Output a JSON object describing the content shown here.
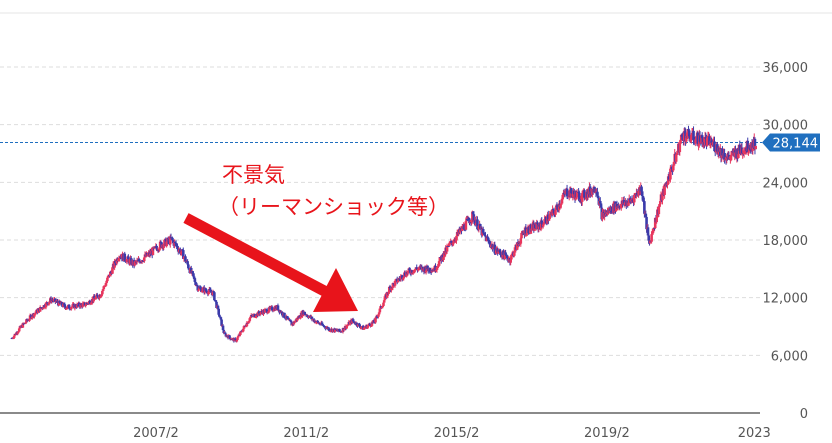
{
  "chart_data": {
    "type": "candlestick",
    "y_ticks": [
      0,
      6000,
      12000,
      18000,
      24000,
      30000,
      36000
    ],
    "y_tick_labels": [
      "0",
      "6,000",
      "12,000",
      "18,000",
      "24,000",
      "30,000",
      "36,000"
    ],
    "ylim": [
      0,
      36000
    ],
    "x_tick_labels": [
      "2007/2",
      "2011/2",
      "2015/2",
      "2019/2",
      "2023"
    ],
    "x_tick_years": [
      2007.08,
      2011.08,
      2015.08,
      2019.08,
      2023.0
    ],
    "xlim": [
      2003.25,
      2023.1
    ],
    "grid": true,
    "current_price": {
      "value": 28144,
      "label": "28,144"
    },
    "colors": {
      "up": "#e8365d",
      "down": "#3b3baa",
      "grid": "#dddddd",
      "price_line": "#1f6fbf",
      "annotation": "#e8141b"
    },
    "close_trajectory": [
      [
        2003.25,
        7800
      ],
      [
        2003.5,
        9000
      ],
      [
        2003.8,
        10200
      ],
      [
        2004.3,
        11800
      ],
      [
        2004.7,
        11000
      ],
      [
        2005.2,
        11300
      ],
      [
        2005.6,
        12300
      ],
      [
        2006.1,
        16500
      ],
      [
        2006.5,
        15500
      ],
      [
        2006.9,
        16500
      ],
      [
        2007.2,
        17500
      ],
      [
        2007.5,
        18000
      ],
      [
        2007.8,
        16500
      ],
      [
        2008.2,
        13000
      ],
      [
        2008.6,
        12500
      ],
      [
        2008.9,
        8200
      ],
      [
        2009.2,
        7500
      ],
      [
        2009.6,
        10000
      ],
      [
        2009.9,
        10500
      ],
      [
        2010.3,
        11000
      ],
      [
        2010.7,
        9200
      ],
      [
        2011.0,
        10500
      ],
      [
        2011.3,
        9600
      ],
      [
        2011.7,
        8700
      ],
      [
        2012.0,
        8500
      ],
      [
        2012.3,
        9600
      ],
      [
        2012.6,
        8800
      ],
      [
        2012.9,
        9500
      ],
      [
        2013.3,
        13000
      ],
      [
        2013.7,
        14500
      ],
      [
        2014.0,
        15000
      ],
      [
        2014.5,
        15000
      ],
      [
        2014.9,
        17500
      ],
      [
        2015.2,
        19000
      ],
      [
        2015.5,
        20500
      ],
      [
        2015.8,
        18500
      ],
      [
        2016.1,
        17000
      ],
      [
        2016.5,
        16000
      ],
      [
        2016.9,
        19000
      ],
      [
        2017.3,
        19500
      ],
      [
        2017.7,
        21000
      ],
      [
        2018.0,
        23000
      ],
      [
        2018.4,
        22500
      ],
      [
        2018.8,
        23500
      ],
      [
        2018.95,
        20500
      ],
      [
        2019.3,
        21500
      ],
      [
        2019.7,
        22000
      ],
      [
        2020.0,
        23500
      ],
      [
        2020.2,
        17500
      ],
      [
        2020.5,
        22000
      ],
      [
        2020.9,
        26500
      ],
      [
        2021.1,
        29000
      ],
      [
        2021.5,
        28500
      ],
      [
        2021.9,
        28000
      ],
      [
        2022.3,
        26500
      ],
      [
        2022.7,
        27500
      ],
      [
        2023.05,
        28144
      ]
    ]
  },
  "annotation": {
    "line1": "不景気",
    "line2": "（リーマンショック等）"
  }
}
